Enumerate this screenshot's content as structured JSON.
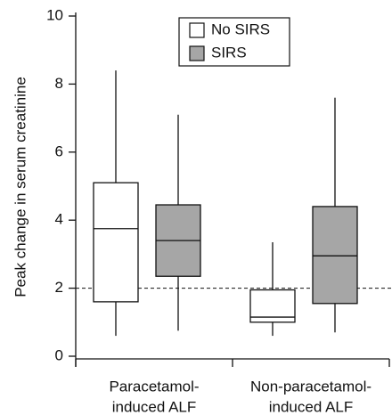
{
  "chart_data": {
    "type": "box",
    "y_label": "Peak change in serum creatinine",
    "categories": [
      [
        "Paracetamol-",
        "induced ALF"
      ],
      [
        "Non-paracetamol-",
        "induced ALF"
      ]
    ],
    "series": [
      {
        "name": "No SIRS",
        "color": "#ffffff",
        "values": [
          {
            "min": 0.6,
            "q1": 1.6,
            "median": 3.75,
            "q3": 5.1,
            "max": 8.4
          },
          {
            "min": 0.6,
            "q1": 1.0,
            "median": 1.15,
            "q3": 1.95,
            "max": 3.35
          }
        ]
      },
      {
        "name": "SIRS",
        "color": "#a6a6a6",
        "values": [
          {
            "min": 0.75,
            "q1": 2.35,
            "median": 3.4,
            "q3": 4.45,
            "max": 7.1
          },
          {
            "min": 0.7,
            "q1": 1.55,
            "median": 2.95,
            "q3": 4.4,
            "max": 7.6
          }
        ]
      }
    ],
    "reference_line": 2,
    "ylim": [
      0,
      10
    ],
    "yticks": [
      0,
      2,
      4,
      6,
      8,
      10
    ],
    "legend": "top-center"
  }
}
